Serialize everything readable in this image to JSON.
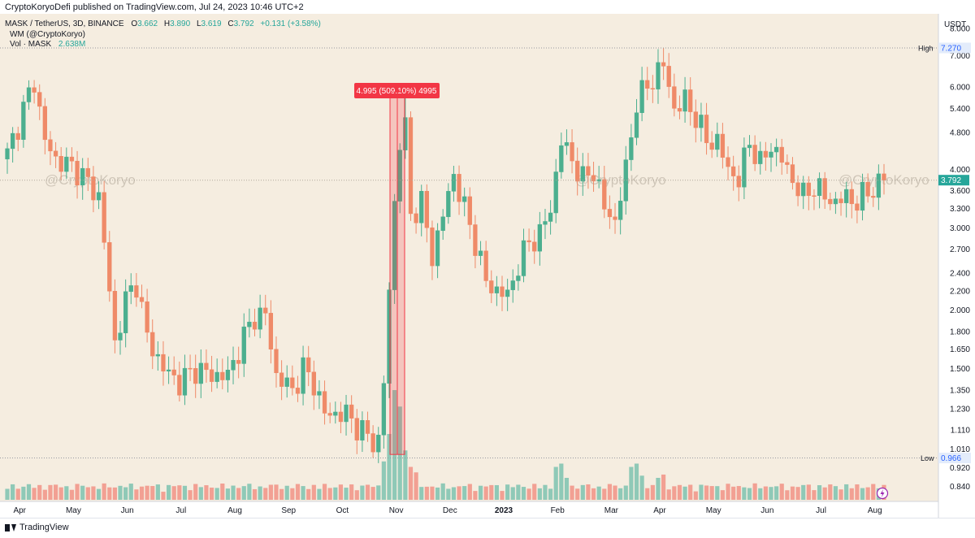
{
  "header": {
    "published_text": "CryptoKoryoDefi published on TradingView.com, Jul 24, 2023 10:46 UTC+2"
  },
  "legend": {
    "symbol": "MASK / TetherUS, 3D, BINANCE",
    "o_label": "O",
    "o_value": "3.662",
    "h_label": "H",
    "h_value": "3.890",
    "l_label": "L",
    "l_value": "3.619",
    "c_label": "C",
    "c_value": "3.792",
    "change": "+0.131 (+3.58%)",
    "indicator": "WM (@CryptoKoryo)",
    "vol_label": "Vol · MASK",
    "vol_value": "2.638M"
  },
  "watermark": "@CryptoKoryo",
  "price_axis": {
    "currency": "USDT",
    "ticks": [
      "8.000",
      "7.000",
      "6.000",
      "5.400",
      "4.800",
      "4.000",
      "3.600",
      "3.300",
      "3.000",
      "2.700",
      "2.400",
      "2.200",
      "2.000",
      "1.800",
      "1.650",
      "1.500",
      "1.350",
      "1.230",
      "1.110",
      "1.010",
      "0.920",
      "0.840"
    ],
    "high_label": "High",
    "high_value": "7.270",
    "low_label": "Low",
    "low_value": "0.966",
    "last_value": "3.792"
  },
  "time_axis": {
    "labels": [
      "Apr",
      "May",
      "Jun",
      "Jul",
      "Aug",
      "Sep",
      "Oct",
      "Nov",
      "Dec",
      "2023",
      "Feb",
      "Mar",
      "Apr",
      "May",
      "Jun",
      "Jul",
      "Aug"
    ]
  },
  "measure": {
    "label": "4.995 (509.10%) 4995"
  },
  "footer": {
    "brand": "TradingView"
  },
  "colors": {
    "background": "#f5ede0",
    "up": "#4caf8f",
    "down": "#ef8a68",
    "vol_up": "#8fc9b7",
    "vol_down": "#f2a093",
    "accent_blue": "#2962ff",
    "measure": "#f23645"
  },
  "chart_data": {
    "type": "candlestick",
    "interval": "3D",
    "scale": "log",
    "ylim": [
      0.78,
      8.6
    ],
    "y_ticks": [
      8.0,
      7.0,
      6.0,
      5.4,
      4.8,
      4.0,
      3.6,
      3.3,
      3.0,
      2.7,
      2.4,
      2.2,
      2.0,
      1.8,
      1.65,
      1.5,
      1.35,
      1.23,
      1.11,
      1.01,
      0.92,
      0.84
    ],
    "high": 7.27,
    "low": 0.966,
    "last": 3.792,
    "measure": {
      "from": 0.983,
      "to": 5.978,
      "change": 4.995,
      "percent": 509.1
    },
    "x_labels": [
      "Apr",
      "May",
      "Jun",
      "Jul",
      "Aug",
      "Sep",
      "Oct",
      "Nov",
      "Dec",
      "2023",
      "Feb",
      "Mar",
      "Apr",
      "May",
      "Jun",
      "Jul",
      "Aug"
    ],
    "anchors": [
      {
        "i": 0,
        "p": 4.3
      },
      {
        "i": 2,
        "p": 5.0
      },
      {
        "i": 5,
        "p": 6.2
      },
      {
        "i": 7,
        "p": 4.6
      },
      {
        "i": 9,
        "p": 4.2
      },
      {
        "i": 13,
        "p": 4.0
      },
      {
        "i": 17,
        "p": 3.5
      },
      {
        "i": 18,
        "p": 2.8
      },
      {
        "i": 20,
        "p": 1.7
      },
      {
        "i": 22,
        "p": 2.1
      },
      {
        "i": 24,
        "p": 2.3
      },
      {
        "i": 26,
        "p": 1.75
      },
      {
        "i": 29,
        "p": 1.5
      },
      {
        "i": 32,
        "p": 1.4
      },
      {
        "i": 35,
        "p": 1.5
      },
      {
        "i": 38,
        "p": 1.45
      },
      {
        "i": 41,
        "p": 1.45
      },
      {
        "i": 44,
        "p": 1.75
      },
      {
        "i": 46,
        "p": 1.95
      },
      {
        "i": 48,
        "p": 1.95
      },
      {
        "i": 50,
        "p": 1.45
      },
      {
        "i": 53,
        "p": 1.35
      },
      {
        "i": 55,
        "p": 1.5
      },
      {
        "i": 57,
        "p": 1.4
      },
      {
        "i": 59,
        "p": 1.2
      },
      {
        "i": 63,
        "p": 1.2
      },
      {
        "i": 66,
        "p": 1.1
      },
      {
        "i": 68,
        "p": 1.05
      },
      {
        "i": 69,
        "p": 1.05
      },
      {
        "i": 70,
        "p": 1.4
      },
      {
        "i": 71,
        "p": 2.2
      },
      {
        "i": 72,
        "p": 3.4
      },
      {
        "i": 73,
        "p": 4.6
      },
      {
        "i": 74,
        "p": 4.9
      },
      {
        "i": 75,
        "p": 3.2
      },
      {
        "i": 77,
        "p": 3.4
      },
      {
        "i": 79,
        "p": 2.6
      },
      {
        "i": 81,
        "p": 3.2
      },
      {
        "i": 83,
        "p": 3.9
      },
      {
        "i": 85,
        "p": 3.3
      },
      {
        "i": 87,
        "p": 2.8
      },
      {
        "i": 89,
        "p": 2.3
      },
      {
        "i": 91,
        "p": 2.2
      },
      {
        "i": 93,
        "p": 2.15
      },
      {
        "i": 95,
        "p": 2.5
      },
      {
        "i": 97,
        "p": 2.8
      },
      {
        "i": 99,
        "p": 2.9
      },
      {
        "i": 101,
        "p": 3.3
      },
      {
        "i": 103,
        "p": 4.6
      },
      {
        "i": 105,
        "p": 4.2
      },
      {
        "i": 107,
        "p": 3.8
      },
      {
        "i": 109,
        "p": 4.0
      },
      {
        "i": 111,
        "p": 3.3
      },
      {
        "i": 113,
        "p": 3.1
      },
      {
        "i": 115,
        "p": 4.0
      },
      {
        "i": 117,
        "p": 5.6
      },
      {
        "i": 119,
        "p": 6.0
      },
      {
        "i": 121,
        "p": 6.5
      },
      {
        "i": 122,
        "p": 6.7
      },
      {
        "i": 123,
        "p": 6.0
      },
      {
        "i": 124,
        "p": 5.4
      },
      {
        "i": 126,
        "p": 5.6
      },
      {
        "i": 128,
        "p": 5.2
      },
      {
        "i": 130,
        "p": 4.6
      },
      {
        "i": 132,
        "p": 4.6
      },
      {
        "i": 134,
        "p": 4.0
      },
      {
        "i": 136,
        "p": 3.8
      },
      {
        "i": 138,
        "p": 4.6
      },
      {
        "i": 140,
        "p": 4.1
      },
      {
        "i": 142,
        "p": 4.5
      },
      {
        "i": 144,
        "p": 4.2
      },
      {
        "i": 146,
        "p": 3.8
      },
      {
        "i": 148,
        "p": 3.5
      },
      {
        "i": 150,
        "p": 3.7
      },
      {
        "i": 152,
        "p": 3.5
      },
      {
        "i": 154,
        "p": 3.4
      },
      {
        "i": 156,
        "p": 3.5
      },
      {
        "i": 158,
        "p": 3.4
      },
      {
        "i": 160,
        "p": 3.6
      },
      {
        "i": 162,
        "p": 3.7
      },
      {
        "i": 163,
        "p": 3.792
      }
    ],
    "volume_peaks": [
      {
        "i": 70,
        "v": 0.35
      },
      {
        "i": 71,
        "v": 0.6
      },
      {
        "i": 72,
        "v": 1.0
      },
      {
        "i": 73,
        "v": 0.85
      },
      {
        "i": 74,
        "v": 0.45
      },
      {
        "i": 75,
        "v": 0.3
      },
      {
        "i": 76,
        "v": 0.25
      },
      {
        "i": 102,
        "v": 0.3
      },
      {
        "i": 103,
        "v": 0.33
      },
      {
        "i": 104,
        "v": 0.2
      },
      {
        "i": 116,
        "v": 0.3
      },
      {
        "i": 117,
        "v": 0.33
      },
      {
        "i": 118,
        "v": 0.22
      },
      {
        "i": 121,
        "v": 0.2
      },
      {
        "i": 122,
        "v": 0.23
      }
    ]
  }
}
